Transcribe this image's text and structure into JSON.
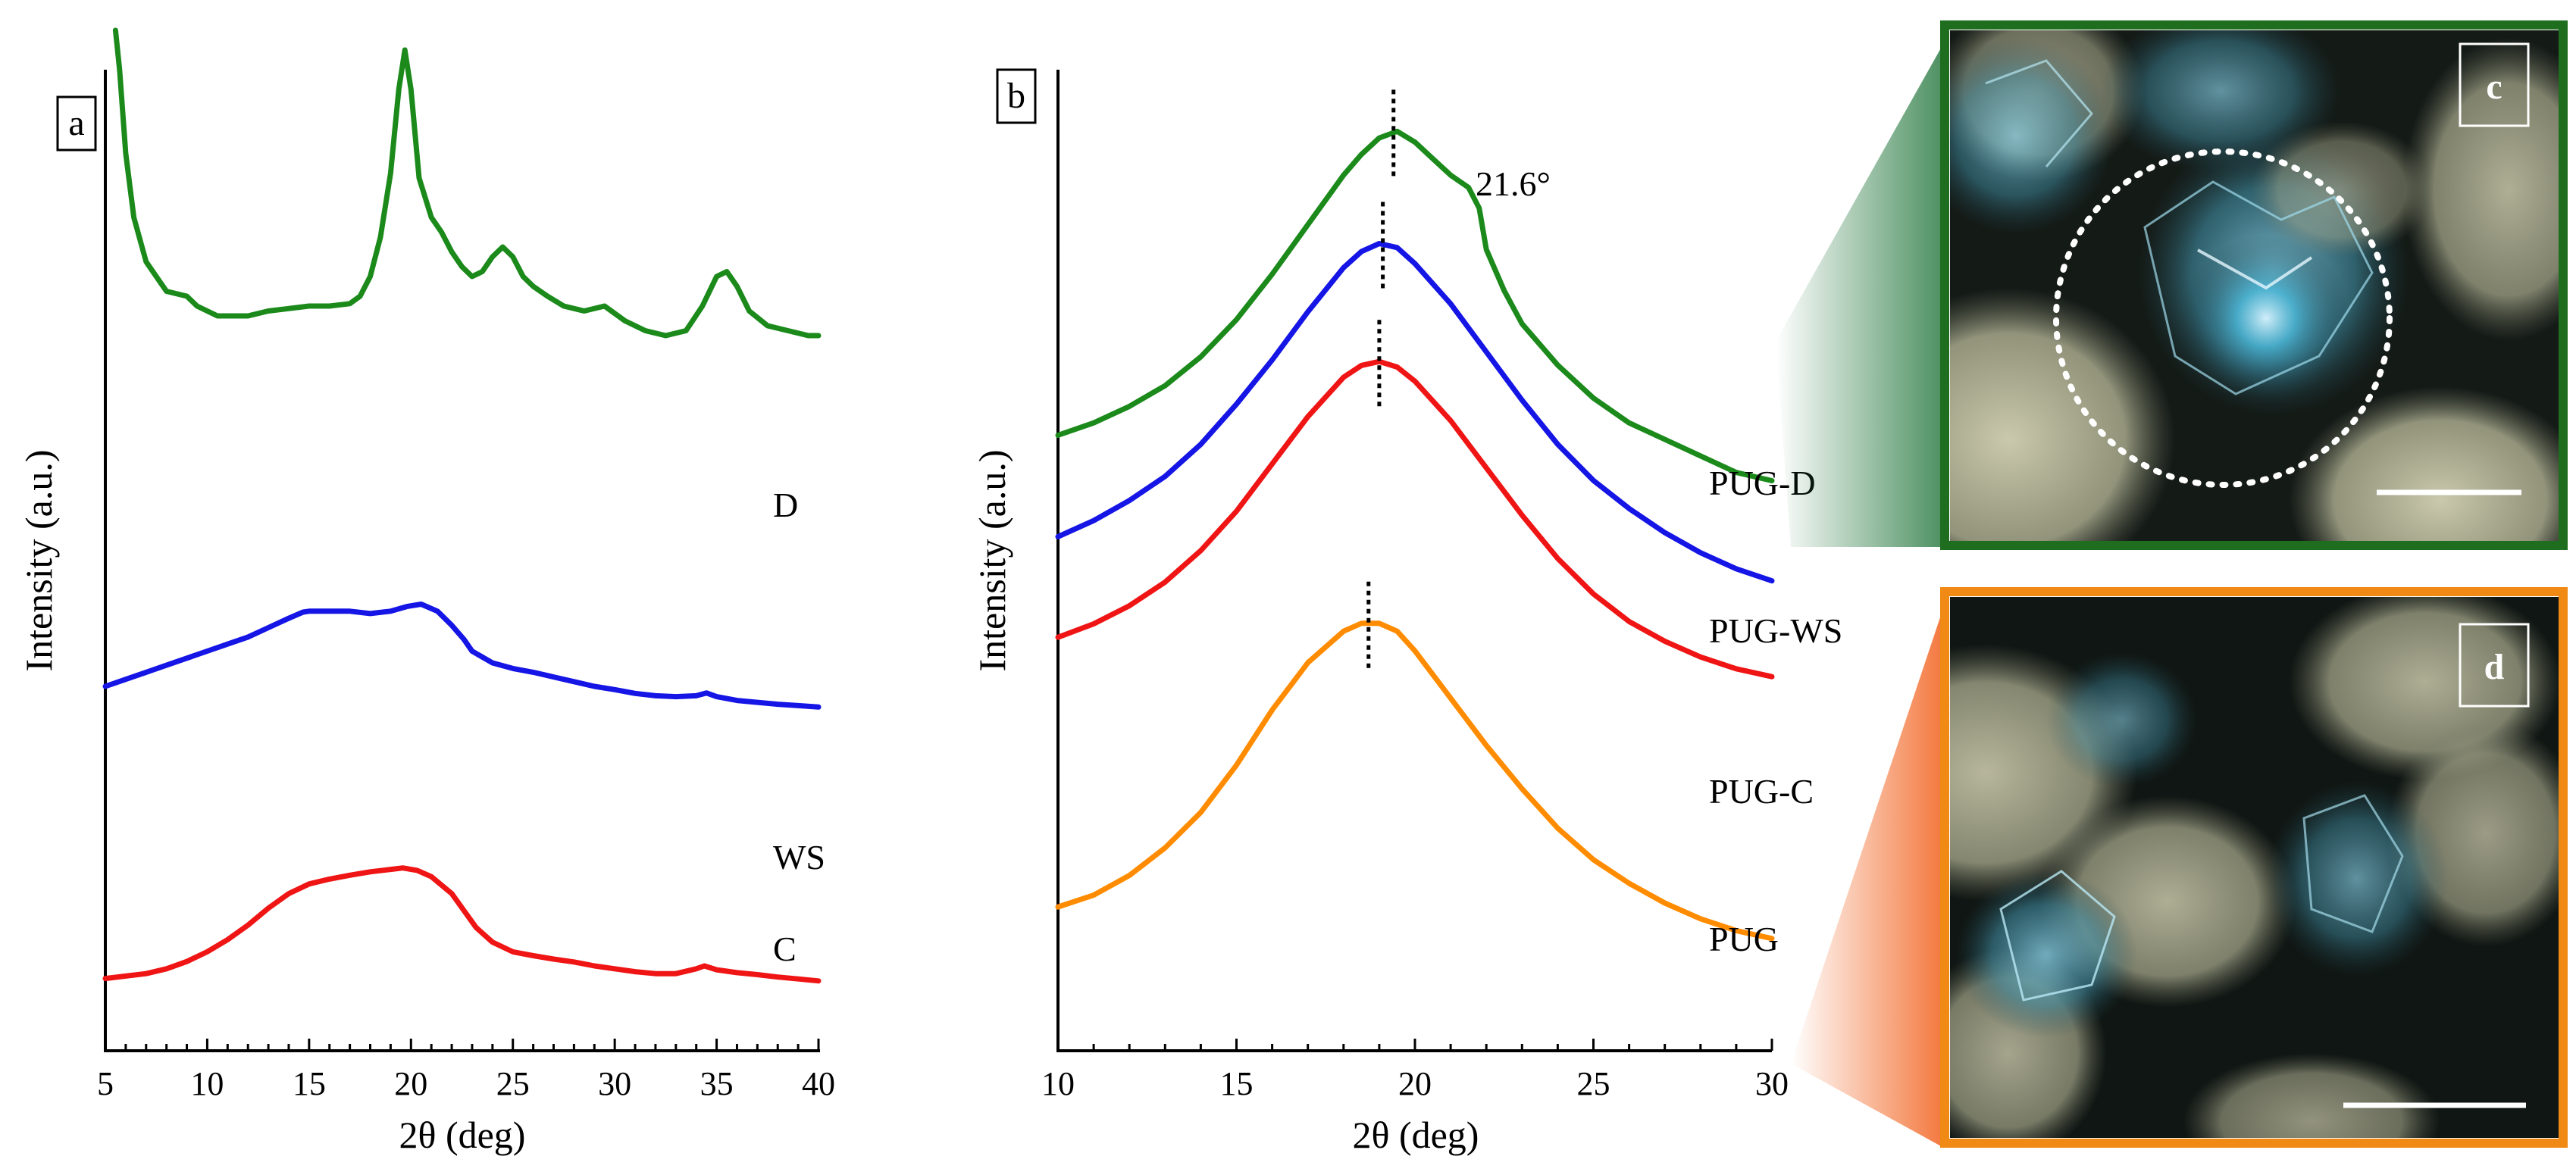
{
  "colors": {
    "D": "#1b8a1b",
    "WS": "#1515e6",
    "C": "#f01515",
    "PUG": "#ff8c00",
    "panel_c_frame": "#1f6e1f",
    "panel_d_frame": "#f08a14"
  },
  "chart_data": [
    {
      "type": "line",
      "panel": "a",
      "xlabel": "2θ (deg)",
      "ylabel": "Intensity (a.u.)",
      "xlim": [
        5,
        40
      ],
      "xticks": [
        "5",
        "10",
        "15",
        "20",
        "25",
        "30",
        "35",
        "40"
      ],
      "yticks": [],
      "grid": false,
      "series": [
        {
          "name": "D",
          "color_key": "D",
          "points": [
            [
              5.5,
              100
            ],
            [
              5.7,
              92
            ],
            [
              6.0,
              75
            ],
            [
              6.4,
              62
            ],
            [
              7.0,
              53
            ],
            [
              7.5,
              50
            ],
            [
              8.0,
              47
            ],
            [
              9.0,
              46
            ],
            [
              9.5,
              44
            ],
            [
              10.0,
              43
            ],
            [
              10.5,
              42
            ],
            [
              11,
              42
            ],
            [
              12,
              42
            ],
            [
              13,
              43
            ],
            [
              14,
              43.5
            ],
            [
              15,
              44
            ],
            [
              16,
              44
            ],
            [
              17,
              44.5
            ],
            [
              17.5,
              46
            ],
            [
              18,
              50
            ],
            [
              18.5,
              58
            ],
            [
              19,
              71
            ],
            [
              19.4,
              88
            ],
            [
              19.7,
              96
            ],
            [
              20.0,
              88
            ],
            [
              20.4,
              70
            ],
            [
              21,
              62
            ],
            [
              21.5,
              59
            ],
            [
              22,
              55
            ],
            [
              22.5,
              52
            ],
            [
              23,
              50
            ],
            [
              23.5,
              51
            ],
            [
              24,
              54
            ],
            [
              24.5,
              56
            ],
            [
              25,
              54
            ],
            [
              25.5,
              50
            ],
            [
              26,
              48
            ],
            [
              26.7,
              46
            ],
            [
              27.5,
              44
            ],
            [
              28.5,
              43
            ],
            [
              29.5,
              44
            ],
            [
              30.5,
              41
            ],
            [
              31.5,
              39
            ],
            [
              32.5,
              38
            ],
            [
              33.5,
              39
            ],
            [
              34.3,
              44
            ],
            [
              35,
              50
            ],
            [
              35.5,
              51
            ],
            [
              36,
              48
            ],
            [
              36.6,
              43
            ],
            [
              37.5,
              40
            ],
            [
              38.5,
              39
            ],
            [
              39.5,
              38
            ],
            [
              40,
              38
            ]
          ]
        },
        {
          "name": "WS",
          "color_key": "WS",
          "points": [
            [
              5,
              20
            ],
            [
              6,
              21.5
            ],
            [
              7,
              23
            ],
            [
              8,
              24.5
            ],
            [
              9,
              26
            ],
            [
              10,
              27.5
            ],
            [
              11,
              29
            ],
            [
              12,
              30.5
            ],
            [
              13,
              32.5
            ],
            [
              14,
              34.5
            ],
            [
              14.7,
              35.8
            ],
            [
              15,
              36
            ],
            [
              16,
              36
            ],
            [
              17,
              36
            ],
            [
              18,
              35.5
            ],
            [
              19,
              36
            ],
            [
              19.8,
              37
            ],
            [
              20.5,
              37.5
            ],
            [
              21.3,
              36
            ],
            [
              22,
              33
            ],
            [
              22.6,
              30
            ],
            [
              23,
              27.5
            ],
            [
              24,
              25
            ],
            [
              25,
              23.8
            ],
            [
              26,
              23
            ],
            [
              27,
              22
            ],
            [
              28,
              21
            ],
            [
              29,
              20
            ],
            [
              30,
              19.3
            ],
            [
              31,
              18.5
            ],
            [
              32,
              18
            ],
            [
              33,
              17.8
            ],
            [
              34,
              18
            ],
            [
              34.5,
              18.6
            ],
            [
              35,
              17.8
            ],
            [
              36,
              17
            ],
            [
              37,
              16.6
            ],
            [
              38,
              16.2
            ],
            [
              39,
              15.9
            ],
            [
              40,
              15.6
            ]
          ]
        },
        {
          "name": "C",
          "color_key": "C",
          "points": [
            [
              5,
              6
            ],
            [
              6,
              6.5
            ],
            [
              7,
              7
            ],
            [
              8,
              8
            ],
            [
              9,
              9.5
            ],
            [
              10,
              11.5
            ],
            [
              11,
              14
            ],
            [
              12,
              17
            ],
            [
              13,
              20.5
            ],
            [
              14,
              23.5
            ],
            [
              15,
              25.5
            ],
            [
              16,
              26.5
            ],
            [
              17,
              27.3
            ],
            [
              18,
              28
            ],
            [
              19,
              28.5
            ],
            [
              19.6,
              28.8
            ],
            [
              20.3,
              28.3
            ],
            [
              21,
              27
            ],
            [
              22,
              23.5
            ],
            [
              22.6,
              20
            ],
            [
              23.2,
              16.5
            ],
            [
              24,
              13.5
            ],
            [
              25,
              11.5
            ],
            [
              26,
              10.7
            ],
            [
              27,
              10
            ],
            [
              28,
              9.4
            ],
            [
              29,
              8.6
            ],
            [
              30,
              8
            ],
            [
              31,
              7.4
            ],
            [
              32,
              7
            ],
            [
              33,
              7
            ],
            [
              34,
              8
            ],
            [
              34.4,
              8.6
            ],
            [
              35,
              7.8
            ],
            [
              36,
              7.2
            ],
            [
              37,
              6.8
            ],
            [
              38,
              6.3
            ],
            [
              39,
              5.9
            ],
            [
              40,
              5.5
            ]
          ]
        }
      ]
    },
    {
      "type": "line",
      "panel": "b",
      "xlabel": "2θ (deg)",
      "ylabel": "Intensity (a.u.)",
      "xlim": [
        10,
        30
      ],
      "xticks": [
        "10",
        "15",
        "20",
        "25",
        "30"
      ],
      "yticks": [],
      "grid": false,
      "peak_annotation": "21.6°",
      "series": [
        {
          "name": "PUG-D",
          "color_key": "D",
          "peak_marker_x": 19.4,
          "points": [
            [
              10,
              50.5
            ],
            [
              11,
              52
            ],
            [
              12,
              54
            ],
            [
              13,
              56.5
            ],
            [
              14,
              60
            ],
            [
              15,
              64.5
            ],
            [
              16,
              70
            ],
            [
              17,
              76
            ],
            [
              18,
              82
            ],
            [
              18.5,
              84.5
            ],
            [
              19,
              86.5
            ],
            [
              19.5,
              87.3
            ],
            [
              20,
              86
            ],
            [
              20.5,
              84
            ],
            [
              21,
              82
            ],
            [
              21.5,
              80.5
            ],
            [
              21.8,
              78
            ],
            [
              22,
              73
            ],
            [
              22.5,
              68
            ],
            [
              23,
              64
            ],
            [
              24,
              59
            ],
            [
              25,
              55
            ],
            [
              26,
              52
            ],
            [
              27,
              50
            ],
            [
              28,
              48
            ],
            [
              29,
              46
            ],
            [
              30,
              45
            ]
          ]
        },
        {
          "name": "PUG-WS",
          "color_key": "WS",
          "peak_marker_x": 19.1,
          "points": [
            [
              10,
              36
            ],
            [
              11,
              38
            ],
            [
              12,
              40.5
            ],
            [
              13,
              43.5
            ],
            [
              14,
              47.5
            ],
            [
              15,
              52.5
            ],
            [
              16,
              58
            ],
            [
              17,
              64
            ],
            [
              18,
              69.5
            ],
            [
              18.5,
              71.5
            ],
            [
              19,
              72.5
            ],
            [
              19.5,
              72
            ],
            [
              20,
              70
            ],
            [
              21,
              65
            ],
            [
              22,
              59
            ],
            [
              23,
              53
            ],
            [
              24,
              47.5
            ],
            [
              25,
              43
            ],
            [
              26,
              39.5
            ],
            [
              27,
              36.5
            ],
            [
              28,
              34
            ],
            [
              29,
              32
            ],
            [
              30,
              30.5
            ]
          ]
        },
        {
          "name": "PUG-C",
          "color_key": "C",
          "peak_marker_x": 19.0,
          "points": [
            [
              10,
              22
            ],
            [
              11,
              23.7
            ],
            [
              12,
              26
            ],
            [
              13,
              29
            ],
            [
              14,
              33
            ],
            [
              15,
              38
            ],
            [
              16,
              44
            ],
            [
              17,
              50
            ],
            [
              18,
              55
            ],
            [
              18.5,
              56.5
            ],
            [
              19,
              57
            ],
            [
              19.5,
              56.3
            ],
            [
              20,
              54.5
            ],
            [
              21,
              49.5
            ],
            [
              22,
              43.5
            ],
            [
              23,
              37.5
            ],
            [
              24,
              32
            ],
            [
              25,
              27.5
            ],
            [
              26,
              24
            ],
            [
              27,
              21.5
            ],
            [
              28,
              19.5
            ],
            [
              29,
              18
            ],
            [
              30,
              17
            ]
          ]
        },
        {
          "name": "PUG",
          "color_key": "PUG",
          "peak_marker_x": 18.7,
          "points": [
            [
              10,
              7
            ],
            [
              11,
              8.5
            ],
            [
              12,
              11
            ],
            [
              13,
              14.5
            ],
            [
              14,
              19
            ],
            [
              15,
              25
            ],
            [
              16,
              32
            ],
            [
              17,
              38
            ],
            [
              18,
              42
            ],
            [
              18.5,
              43
            ],
            [
              19,
              43
            ],
            [
              19.5,
              42
            ],
            [
              20,
              39.5
            ],
            [
              21,
              33.5
            ],
            [
              22,
              27.5
            ],
            [
              23,
              22
            ],
            [
              24,
              17
            ],
            [
              25,
              13
            ],
            [
              26,
              10
            ],
            [
              27,
              7.5
            ],
            [
              28,
              5.5
            ],
            [
              29,
              4
            ],
            [
              30,
              3
            ]
          ]
        }
      ]
    }
  ],
  "panel_labels": {
    "a": "a",
    "b": "b",
    "c": "c",
    "d": "d"
  },
  "micrographs": {
    "c": {
      "frame_color_key": "panel_c_frame",
      "highlight": "dotted-circle",
      "scale_bar": true
    },
    "d": {
      "frame_color_key": "panel_d_frame",
      "highlight": "none",
      "scale_bar": true
    }
  }
}
